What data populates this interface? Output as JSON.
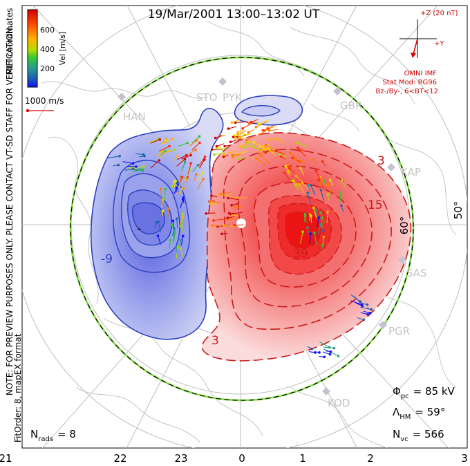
{
  "title": "19/Mar/2001 13:00–13:02 UT",
  "colorbar": {
    "unit_label": "Vel [m/s]",
    "ticks": [
      "600",
      "400",
      "200"
    ],
    "colors": [
      "#d40000",
      "#ff2a00",
      "#ff7a00",
      "#ffb400",
      "#f0e000",
      "#a8dc00",
      "#32c832",
      "#2a9d8f",
      "#1f62b0",
      "#1010ff"
    ]
  },
  "side_labels": {
    "coordinates": "MLT coordinates",
    "note": "NOTE: FOR PREVIEW PURPOSES ONLY. PLEASE CONTACT VT-SD STAFF FOR VERIFICATION.",
    "fit": "FitOrder: 8, mapEX format"
  },
  "velocity_scale": {
    "label": "1000 m/s"
  },
  "imf": {
    "z_label": "+Z (20 nT)",
    "y_label": "+Y",
    "source": "OMNI IMF",
    "model": "Stat Mod: RG96",
    "condition": "Bz-/By-, 6<BT<12",
    "color": "#d40000"
  },
  "radars": [
    "HAN",
    "STO",
    "PYK",
    "GBR",
    "KAP",
    "SAS",
    "PGR",
    "KOD"
  ],
  "latitude_labels": [
    "60°",
    "50°"
  ],
  "contours": {
    "neg_labels": [
      "-9",
      "-"
    ],
    "pos_labels": [
      "3",
      "15",
      "39",
      "3"
    ]
  },
  "mlt_ticks": [
    "21",
    "22",
    "23",
    "0",
    "1",
    "2",
    "3"
  ],
  "stats": {
    "phi_pc": {
      "symbol": "Φ",
      "sub": "pc",
      "value": "= 85 kV"
    },
    "lambda_hm": {
      "symbol": "Λ",
      "sub": "HM",
      "value": "= 59°"
    },
    "n_vc": {
      "symbol": "N",
      "sub": "vc",
      "value": "= 566"
    },
    "n_rads": {
      "symbol": "N",
      "sub": "rads",
      "value": "= 8"
    }
  },
  "colors": {
    "positive": "#e03030",
    "negative": "#2a3fc0",
    "heppner_boundary": "#7ddc3c"
  }
}
